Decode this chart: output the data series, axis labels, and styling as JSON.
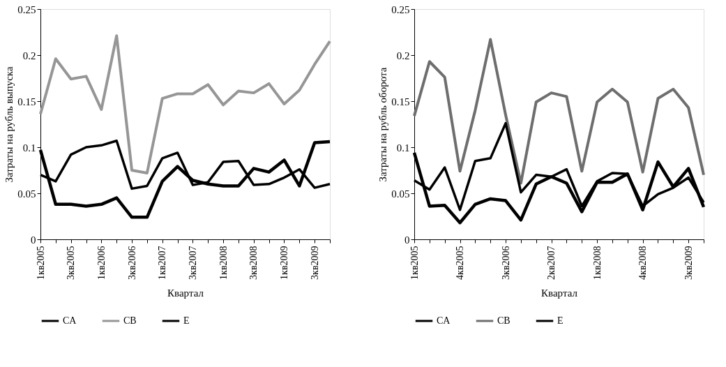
{
  "chart_data": [
    {
      "type": "line",
      "xlabel": "Квартал",
      "ylabel": "Затраты на рубль выпуска",
      "legend": "bottom",
      "grid": false,
      "marker": "none",
      "line_style": "solid",
      "categories": [
        "1кв2005",
        null,
        "3кв2005",
        null,
        "1кв2006",
        null,
        "3кв2006",
        null,
        "1кв2007",
        null,
        "3кв2007",
        null,
        "1кв2008",
        null,
        "3кв2008",
        null,
        "1кв2009",
        null,
        "3кв2009",
        null
      ],
      "ylim": [
        0,
        0.25
      ],
      "yticks": [
        0,
        0.05,
        0.1,
        0.15,
        0.2,
        0.25
      ],
      "series": [
        {
          "name": "CA",
          "color": "#000000",
          "values": [
            0.097,
            0.038,
            0.038,
            0.036,
            0.038,
            0.045,
            0.024,
            0.024,
            0.063,
            0.079,
            0.064,
            0.06,
            0.058,
            0.058,
            0.077,
            0.073,
            0.086,
            0.058,
            0.105,
            0.106
          ]
        },
        {
          "name": "CB",
          "color": "#969696",
          "values": [
            0.136,
            0.196,
            0.174,
            0.177,
            0.141,
            0.221,
            0.075,
            0.072,
            0.153,
            0.158,
            0.158,
            0.168,
            0.146,
            0.161,
            0.159,
            0.169,
            0.147,
            0.162,
            0.19,
            0.215
          ]
        },
        {
          "name": "E",
          "color": "#000000",
          "values": [
            0.07,
            0.063,
            0.092,
            0.1,
            0.102,
            0.107,
            0.055,
            0.058,
            0.088,
            0.094,
            0.059,
            0.062,
            0.084,
            0.085,
            0.059,
            0.06,
            0.067,
            0.076,
            0.056,
            0.06
          ]
        }
      ]
    },
    {
      "type": "line",
      "xlabel": "Квартал",
      "ylabel": "Затраты на рубль оборота",
      "legend": "bottom",
      "grid": false,
      "marker": "none",
      "line_style": "solid",
      "categories": [
        "1кв2005",
        null,
        null,
        "4кв2005",
        null,
        null,
        "3кв2006",
        null,
        null,
        "2кв2007",
        null,
        null,
        "1кв2008",
        null,
        null,
        "4кв2008",
        null,
        null,
        "3кв2009",
        null
      ],
      "ylim": [
        0,
        0.25
      ],
      "yticks": [
        0,
        0.05,
        0.1,
        0.15,
        0.2,
        0.25
      ],
      "series": [
        {
          "name": "CA",
          "color": "#000000",
          "values": [
            0.094,
            0.036,
            0.037,
            0.018,
            0.038,
            0.044,
            0.042,
            0.021,
            0.06,
            0.068,
            0.061,
            0.03,
            0.062,
            0.062,
            0.071,
            0.032,
            0.084,
            0.057,
            0.077,
            0.035
          ]
        },
        {
          "name": "CB",
          "color": "#6e6e6e",
          "values": [
            0.134,
            0.193,
            0.176,
            0.074,
            0.14,
            0.217,
            0.135,
            0.061,
            0.149,
            0.159,
            0.155,
            0.074,
            0.149,
            0.163,
            0.149,
            0.073,
            0.153,
            0.163,
            0.143,
            0.07
          ]
        },
        {
          "name": "E",
          "color": "#000000",
          "values": [
            0.064,
            0.054,
            0.078,
            0.032,
            0.085,
            0.088,
            0.126,
            0.051,
            0.07,
            0.068,
            0.076,
            0.036,
            0.063,
            0.072,
            0.071,
            0.036,
            0.049,
            0.056,
            0.067,
            0.04
          ]
        }
      ]
    }
  ]
}
